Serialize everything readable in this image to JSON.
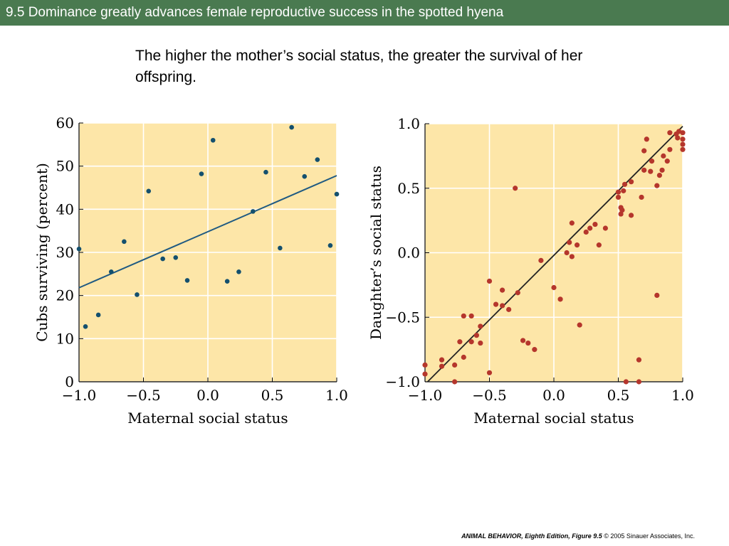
{
  "slide": {
    "title": "9.5  Dominance greatly advances female reproductive success in the spotted hyena",
    "subtitle": "The higher the mother’s social status, the greater the survival of her offspring.",
    "credit_book": "ANIMAL BEHAVIOR, Eighth Edition,",
    "credit_figure": "Figure 9.5",
    "credit_rest": "© 2005 Sinauer Associates, Inc."
  },
  "colors": {
    "plot_bg": "#fde6a8",
    "grid": "#ffffff",
    "left_points": "#14506e",
    "left_line": "#1f5a82",
    "right_points": "#b5362c",
    "right_line": "#222222"
  },
  "chart_data": [
    {
      "type": "scatter",
      "xlabel": "Maternal social status",
      "ylabel": "Cubs surviving (percent)",
      "xlim": [
        -1.0,
        1.0
      ],
      "ylim": [
        0,
        60
      ],
      "x_ticks": [
        -1.0,
        -0.5,
        0.0,
        0.5,
        1.0
      ],
      "x_tick_labels": [
        "−1.0",
        "−0.5",
        "0.0",
        "0.5",
        "1.0"
      ],
      "y_ticks": [
        0,
        10,
        20,
        30,
        40,
        50,
        60
      ],
      "y_tick_labels": [
        "0",
        "10",
        "20",
        "30",
        "40",
        "50",
        "60"
      ],
      "grid": true,
      "trend_line": {
        "x": [
          -1.0,
          1.0
        ],
        "y": [
          21.8,
          47.8
        ]
      },
      "points": [
        [
          -1.0,
          30.8
        ],
        [
          -0.95,
          12.8
        ],
        [
          -0.85,
          15.5
        ],
        [
          -0.75,
          25.5
        ],
        [
          -0.65,
          32.5
        ],
        [
          -0.55,
          20.2
        ],
        [
          -0.46,
          44.2
        ],
        [
          -0.35,
          28.5
        ],
        [
          -0.25,
          28.8
        ],
        [
          -0.16,
          23.5
        ],
        [
          -0.05,
          48.2
        ],
        [
          0.04,
          56.0
        ],
        [
          0.15,
          23.3
        ],
        [
          0.24,
          25.5
        ],
        [
          0.35,
          39.5
        ],
        [
          0.45,
          48.6
        ],
        [
          0.56,
          31.0
        ],
        [
          0.65,
          59.0
        ],
        [
          0.75,
          47.6
        ],
        [
          0.85,
          51.5
        ],
        [
          0.95,
          31.6
        ],
        [
          1.0,
          43.5
        ]
      ]
    },
    {
      "type": "scatter",
      "xlabel": "Maternal social status",
      "ylabel": "Daughter’s social status",
      "xlim": [
        -1.0,
        1.0
      ],
      "ylim": [
        -1.0,
        1.0
      ],
      "x_ticks": [
        -1.0,
        -0.5,
        0.0,
        0.5,
        1.0
      ],
      "x_tick_labels": [
        "−1.0",
        "−0.5",
        "0.0",
        "0.5",
        "1.0"
      ],
      "y_ticks": [
        -1.0,
        -0.5,
        0.0,
        0.5,
        1.0
      ],
      "y_tick_labels": [
        "−1.0",
        "−0.5",
        "0.0",
        "0.5",
        "1.0"
      ],
      "grid": true,
      "trend_line": {
        "x": [
          -0.98,
          1.0
        ],
        "y": [
          -1.0,
          0.98
        ]
      },
      "points": [
        [
          -1.0,
          -0.87
        ],
        [
          -1.0,
          -0.94
        ],
        [
          -0.87,
          -0.83
        ],
        [
          -0.87,
          -0.88
        ],
        [
          -0.77,
          -0.87
        ],
        [
          -0.77,
          -1.0
        ],
        [
          -0.73,
          -0.69
        ],
        [
          -0.7,
          -0.49
        ],
        [
          -0.7,
          -0.81
        ],
        [
          -0.64,
          -0.49
        ],
        [
          -0.64,
          -0.69
        ],
        [
          -0.6,
          -0.64
        ],
        [
          -0.57,
          -0.7
        ],
        [
          -0.57,
          -0.57
        ],
        [
          -0.5,
          -0.22
        ],
        [
          -0.5,
          -0.93
        ],
        [
          -0.45,
          -0.4
        ],
        [
          -0.4,
          -0.29
        ],
        [
          -0.4,
          -0.41
        ],
        [
          -0.35,
          -0.44
        ],
        [
          -0.3,
          0.5
        ],
        [
          -0.28,
          -0.31
        ],
        [
          -0.24,
          -0.68
        ],
        [
          -0.2,
          -0.7
        ],
        [
          -0.15,
          -0.75
        ],
        [
          -0.1,
          -0.06
        ],
        [
          0.0,
          -0.27
        ],
        [
          0.05,
          -0.36
        ],
        [
          0.1,
          0.0
        ],
        [
          0.12,
          0.08
        ],
        [
          0.14,
          -0.03
        ],
        [
          0.14,
          0.23
        ],
        [
          0.18,
          0.06
        ],
        [
          0.2,
          -0.56
        ],
        [
          0.25,
          0.16
        ],
        [
          0.28,
          0.19
        ],
        [
          0.32,
          0.22
        ],
        [
          0.35,
          0.06
        ],
        [
          0.4,
          0.19
        ],
        [
          0.5,
          0.43
        ],
        [
          0.5,
          0.47
        ],
        [
          0.52,
          0.3
        ],
        [
          0.52,
          0.35
        ],
        [
          0.53,
          0.33
        ],
        [
          0.54,
          0.48
        ],
        [
          0.55,
          0.53
        ],
        [
          0.6,
          0.29
        ],
        [
          0.6,
          0.55
        ],
        [
          0.56,
          -1.0
        ],
        [
          0.66,
          -0.83
        ],
        [
          0.66,
          -1.0
        ],
        [
          0.68,
          0.43
        ],
        [
          0.7,
          0.64
        ],
        [
          0.7,
          0.79
        ],
        [
          0.72,
          0.88
        ],
        [
          0.75,
          0.63
        ],
        [
          0.76,
          0.71
        ],
        [
          0.8,
          -0.33
        ],
        [
          0.8,
          0.52
        ],
        [
          0.82,
          0.6
        ],
        [
          0.84,
          0.64
        ],
        [
          0.85,
          0.75
        ],
        [
          0.88,
          0.71
        ],
        [
          0.9,
          0.8
        ],
        [
          0.9,
          0.93
        ],
        [
          0.95,
          0.92
        ],
        [
          0.96,
          0.89
        ],
        [
          0.97,
          0.94
        ],
        [
          1.0,
          0.93
        ],
        [
          1.0,
          0.88
        ],
        [
          1.0,
          0.84
        ],
        [
          1.0,
          0.8
        ]
      ]
    }
  ]
}
